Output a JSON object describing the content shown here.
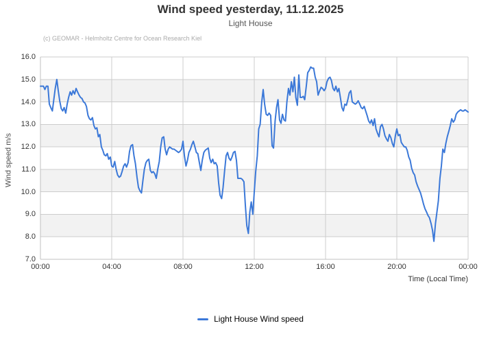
{
  "credits": "(c) GEOMAR - Helmholtz Centre for Ocean Research Kiel",
  "colors": {
    "line": "#3b78d8",
    "band": "#f2f2f2",
    "grid": "#cccccc",
    "axis": "#c0c0c0",
    "title": "#333333",
    "subtitle": "#555555",
    "credits": "#aaaaaa",
    "tick_label": "#333333"
  },
  "chart_data": {
    "type": "line",
    "title": "Wind speed yesterday, 11.12.2025",
    "subtitle": "Light House",
    "xlabel": "Time (Local Time)",
    "ylabel": "Wind speed  m/s",
    "ylim": [
      7,
      16
    ],
    "y_tick_step": 1,
    "xlim_hours": [
      0,
      24
    ],
    "x_tick_hours": [
      0,
      4,
      8,
      12,
      16,
      20,
      24
    ],
    "x_tick_labels": [
      "00:00",
      "04:00",
      "08:00",
      "12:00",
      "16:00",
      "20:00",
      "00:00"
    ],
    "grid": true,
    "plot_bands": [
      [
        8,
        9
      ],
      [
        10,
        11
      ],
      [
        12,
        13
      ],
      [
        14,
        15
      ]
    ],
    "legend_position": "bottom",
    "series": [
      {
        "name": "Light House Wind speed",
        "color": "#3b78d8",
        "points": [
          [
            0.0,
            14.7
          ],
          [
            0.17,
            14.7
          ],
          [
            0.25,
            14.55
          ],
          [
            0.33,
            14.7
          ],
          [
            0.42,
            14.7
          ],
          [
            0.5,
            13.9
          ],
          [
            0.58,
            13.75
          ],
          [
            0.67,
            13.6
          ],
          [
            0.75,
            14.1
          ],
          [
            0.83,
            14.6
          ],
          [
            0.92,
            15.0
          ],
          [
            1.0,
            14.5
          ],
          [
            1.08,
            14.05
          ],
          [
            1.17,
            13.7
          ],
          [
            1.25,
            13.6
          ],
          [
            1.33,
            13.75
          ],
          [
            1.42,
            13.5
          ],
          [
            1.5,
            13.9
          ],
          [
            1.58,
            14.2
          ],
          [
            1.67,
            14.45
          ],
          [
            1.75,
            14.3
          ],
          [
            1.83,
            14.5
          ],
          [
            1.92,
            14.35
          ],
          [
            2.0,
            14.6
          ],
          [
            2.08,
            14.45
          ],
          [
            2.17,
            14.3
          ],
          [
            2.25,
            14.2
          ],
          [
            2.33,
            14.15
          ],
          [
            2.42,
            14.0
          ],
          [
            2.5,
            13.95
          ],
          [
            2.58,
            13.8
          ],
          [
            2.67,
            13.4
          ],
          [
            2.75,
            13.25
          ],
          [
            2.83,
            13.2
          ],
          [
            2.92,
            13.3
          ],
          [
            3.0,
            12.95
          ],
          [
            3.08,
            12.8
          ],
          [
            3.17,
            12.85
          ],
          [
            3.25,
            12.45
          ],
          [
            3.33,
            12.55
          ],
          [
            3.42,
            12.0
          ],
          [
            3.5,
            11.85
          ],
          [
            3.58,
            11.65
          ],
          [
            3.67,
            11.6
          ],
          [
            3.75,
            11.7
          ],
          [
            3.83,
            11.45
          ],
          [
            3.92,
            11.55
          ],
          [
            4.0,
            11.15
          ],
          [
            4.08,
            11.1
          ],
          [
            4.17,
            11.35
          ],
          [
            4.25,
            11.0
          ],
          [
            4.33,
            10.75
          ],
          [
            4.42,
            10.65
          ],
          [
            4.5,
            10.7
          ],
          [
            4.58,
            10.9
          ],
          [
            4.67,
            11.15
          ],
          [
            4.75,
            11.25
          ],
          [
            4.83,
            11.1
          ],
          [
            4.92,
            11.3
          ],
          [
            5.0,
            11.8
          ],
          [
            5.08,
            12.05
          ],
          [
            5.17,
            12.1
          ],
          [
            5.25,
            11.6
          ],
          [
            5.33,
            11.25
          ],
          [
            5.42,
            10.65
          ],
          [
            5.5,
            10.2
          ],
          [
            5.58,
            10.05
          ],
          [
            5.67,
            9.95
          ],
          [
            5.75,
            10.5
          ],
          [
            5.83,
            11.0
          ],
          [
            5.92,
            11.3
          ],
          [
            6.0,
            11.4
          ],
          [
            6.08,
            11.45
          ],
          [
            6.17,
            10.95
          ],
          [
            6.25,
            10.85
          ],
          [
            6.33,
            10.9
          ],
          [
            6.42,
            10.8
          ],
          [
            6.5,
            10.6
          ],
          [
            6.58,
            11.0
          ],
          [
            6.67,
            11.35
          ],
          [
            6.75,
            12.0
          ],
          [
            6.83,
            12.4
          ],
          [
            6.92,
            12.45
          ],
          [
            7.0,
            11.9
          ],
          [
            7.08,
            11.65
          ],
          [
            7.17,
            11.9
          ],
          [
            7.25,
            12.0
          ],
          [
            7.33,
            11.95
          ],
          [
            7.42,
            11.9
          ],
          [
            7.5,
            11.9
          ],
          [
            7.58,
            11.85
          ],
          [
            7.67,
            11.8
          ],
          [
            7.75,
            11.75
          ],
          [
            7.83,
            11.8
          ],
          [
            7.92,
            11.9
          ],
          [
            8.0,
            12.25
          ],
          [
            8.08,
            11.6
          ],
          [
            8.17,
            11.15
          ],
          [
            8.25,
            11.4
          ],
          [
            8.33,
            11.75
          ],
          [
            8.42,
            11.9
          ],
          [
            8.5,
            12.1
          ],
          [
            8.58,
            12.25
          ],
          [
            8.67,
            12.0
          ],
          [
            8.75,
            11.75
          ],
          [
            8.83,
            11.7
          ],
          [
            8.92,
            11.3
          ],
          [
            9.0,
            10.95
          ],
          [
            9.08,
            11.4
          ],
          [
            9.17,
            11.75
          ],
          [
            9.25,
            11.85
          ],
          [
            9.33,
            11.9
          ],
          [
            9.42,
            11.95
          ],
          [
            9.5,
            11.5
          ],
          [
            9.58,
            11.3
          ],
          [
            9.67,
            11.45
          ],
          [
            9.75,
            11.25
          ],
          [
            9.83,
            11.3
          ],
          [
            9.92,
            11.15
          ],
          [
            10.0,
            10.4
          ],
          [
            10.08,
            9.85
          ],
          [
            10.17,
            9.7
          ],
          [
            10.25,
            10.2
          ],
          [
            10.33,
            10.9
          ],
          [
            10.42,
            11.6
          ],
          [
            10.5,
            11.75
          ],
          [
            10.58,
            11.5
          ],
          [
            10.67,
            11.4
          ],
          [
            10.75,
            11.55
          ],
          [
            10.83,
            11.75
          ],
          [
            10.92,
            11.8
          ],
          [
            11.0,
            11.4
          ],
          [
            11.08,
            10.6
          ],
          [
            11.17,
            10.6
          ],
          [
            11.25,
            10.6
          ],
          [
            11.33,
            10.55
          ],
          [
            11.42,
            10.45
          ],
          [
            11.5,
            9.4
          ],
          [
            11.58,
            8.5
          ],
          [
            11.67,
            8.15
          ],
          [
            11.75,
            9.1
          ],
          [
            11.83,
            9.55
          ],
          [
            11.92,
            9.0
          ],
          [
            12.0,
            10.0
          ],
          [
            12.08,
            10.9
          ],
          [
            12.17,
            11.6
          ],
          [
            12.25,
            12.8
          ],
          [
            12.33,
            13.0
          ],
          [
            12.42,
            14.0
          ],
          [
            12.5,
            14.55
          ],
          [
            12.58,
            13.9
          ],
          [
            12.67,
            13.45
          ],
          [
            12.75,
            13.4
          ],
          [
            12.83,
            13.5
          ],
          [
            12.92,
            13.4
          ],
          [
            13.0,
            12.05
          ],
          [
            13.08,
            11.95
          ],
          [
            13.17,
            13.15
          ],
          [
            13.25,
            13.75
          ],
          [
            13.33,
            14.1
          ],
          [
            13.42,
            13.2
          ],
          [
            13.5,
            13.05
          ],
          [
            13.58,
            13.45
          ],
          [
            13.67,
            13.2
          ],
          [
            13.75,
            13.15
          ],
          [
            13.83,
            14.0
          ],
          [
            13.92,
            14.6
          ],
          [
            14.0,
            14.3
          ],
          [
            14.08,
            14.9
          ],
          [
            14.17,
            14.45
          ],
          [
            14.25,
            15.1
          ],
          [
            14.33,
            14.2
          ],
          [
            14.42,
            13.85
          ],
          [
            14.5,
            15.2
          ],
          [
            14.58,
            14.2
          ],
          [
            14.67,
            14.2
          ],
          [
            14.75,
            14.25
          ],
          [
            14.83,
            14.1
          ],
          [
            14.92,
            14.7
          ],
          [
            15.0,
            15.3
          ],
          [
            15.08,
            15.4
          ],
          [
            15.17,
            15.55
          ],
          [
            15.25,
            15.5
          ],
          [
            15.33,
            15.5
          ],
          [
            15.42,
            15.1
          ],
          [
            15.5,
            14.9
          ],
          [
            15.58,
            14.3
          ],
          [
            15.67,
            14.5
          ],
          [
            15.75,
            14.65
          ],
          [
            15.83,
            14.6
          ],
          [
            15.92,
            14.5
          ],
          [
            16.0,
            14.6
          ],
          [
            16.08,
            14.9
          ],
          [
            16.17,
            15.05
          ],
          [
            16.25,
            15.1
          ],
          [
            16.33,
            14.95
          ],
          [
            16.42,
            14.6
          ],
          [
            16.5,
            14.5
          ],
          [
            16.58,
            14.7
          ],
          [
            16.67,
            14.45
          ],
          [
            16.75,
            14.6
          ],
          [
            16.83,
            14.2
          ],
          [
            16.92,
            13.75
          ],
          [
            17.0,
            13.6
          ],
          [
            17.08,
            13.9
          ],
          [
            17.17,
            13.85
          ],
          [
            17.25,
            14.1
          ],
          [
            17.33,
            14.4
          ],
          [
            17.42,
            14.5
          ],
          [
            17.5,
            14.0
          ],
          [
            17.58,
            13.95
          ],
          [
            17.67,
            13.9
          ],
          [
            17.75,
            13.95
          ],
          [
            17.83,
            14.05
          ],
          [
            17.92,
            13.9
          ],
          [
            18.0,
            13.75
          ],
          [
            18.08,
            13.7
          ],
          [
            18.17,
            13.8
          ],
          [
            18.25,
            13.6
          ],
          [
            18.33,
            13.4
          ],
          [
            18.42,
            13.15
          ],
          [
            18.5,
            13.05
          ],
          [
            18.58,
            13.2
          ],
          [
            18.67,
            12.95
          ],
          [
            18.75,
            13.25
          ],
          [
            18.83,
            12.8
          ],
          [
            18.92,
            12.6
          ],
          [
            19.0,
            12.45
          ],
          [
            19.08,
            12.9
          ],
          [
            19.17,
            13.0
          ],
          [
            19.25,
            12.8
          ],
          [
            19.33,
            12.5
          ],
          [
            19.42,
            12.35
          ],
          [
            19.5,
            12.25
          ],
          [
            19.58,
            12.55
          ],
          [
            19.67,
            12.4
          ],
          [
            19.75,
            12.15
          ],
          [
            19.83,
            12.0
          ],
          [
            19.92,
            12.5
          ],
          [
            20.0,
            12.8
          ],
          [
            20.08,
            12.5
          ],
          [
            20.17,
            12.55
          ],
          [
            20.25,
            12.2
          ],
          [
            20.33,
            12.1
          ],
          [
            20.42,
            12.0
          ],
          [
            20.5,
            12.0
          ],
          [
            20.58,
            11.85
          ],
          [
            20.67,
            11.55
          ],
          [
            20.75,
            11.4
          ],
          [
            20.83,
            11.05
          ],
          [
            20.92,
            10.85
          ],
          [
            21.0,
            10.75
          ],
          [
            21.08,
            10.45
          ],
          [
            21.17,
            10.25
          ],
          [
            21.25,
            10.1
          ],
          [
            21.33,
            9.95
          ],
          [
            21.42,
            9.7
          ],
          [
            21.5,
            9.45
          ],
          [
            21.58,
            9.25
          ],
          [
            21.67,
            9.1
          ],
          [
            21.75,
            8.95
          ],
          [
            21.83,
            8.85
          ],
          [
            21.92,
            8.6
          ],
          [
            22.0,
            8.3
          ],
          [
            22.08,
            7.8
          ],
          [
            22.17,
            8.6
          ],
          [
            22.25,
            9.1
          ],
          [
            22.33,
            9.6
          ],
          [
            22.42,
            10.6
          ],
          [
            22.5,
            11.15
          ],
          [
            22.58,
            11.9
          ],
          [
            22.67,
            11.75
          ],
          [
            22.75,
            12.15
          ],
          [
            22.83,
            12.45
          ],
          [
            22.92,
            12.7
          ],
          [
            23.0,
            12.95
          ],
          [
            23.08,
            13.25
          ],
          [
            23.17,
            13.1
          ],
          [
            23.25,
            13.2
          ],
          [
            23.33,
            13.45
          ],
          [
            23.42,
            13.55
          ],
          [
            23.5,
            13.6
          ],
          [
            23.58,
            13.65
          ],
          [
            23.67,
            13.6
          ],
          [
            23.75,
            13.6
          ],
          [
            23.83,
            13.65
          ],
          [
            23.92,
            13.6
          ],
          [
            24.0,
            13.55
          ]
        ]
      }
    ]
  }
}
